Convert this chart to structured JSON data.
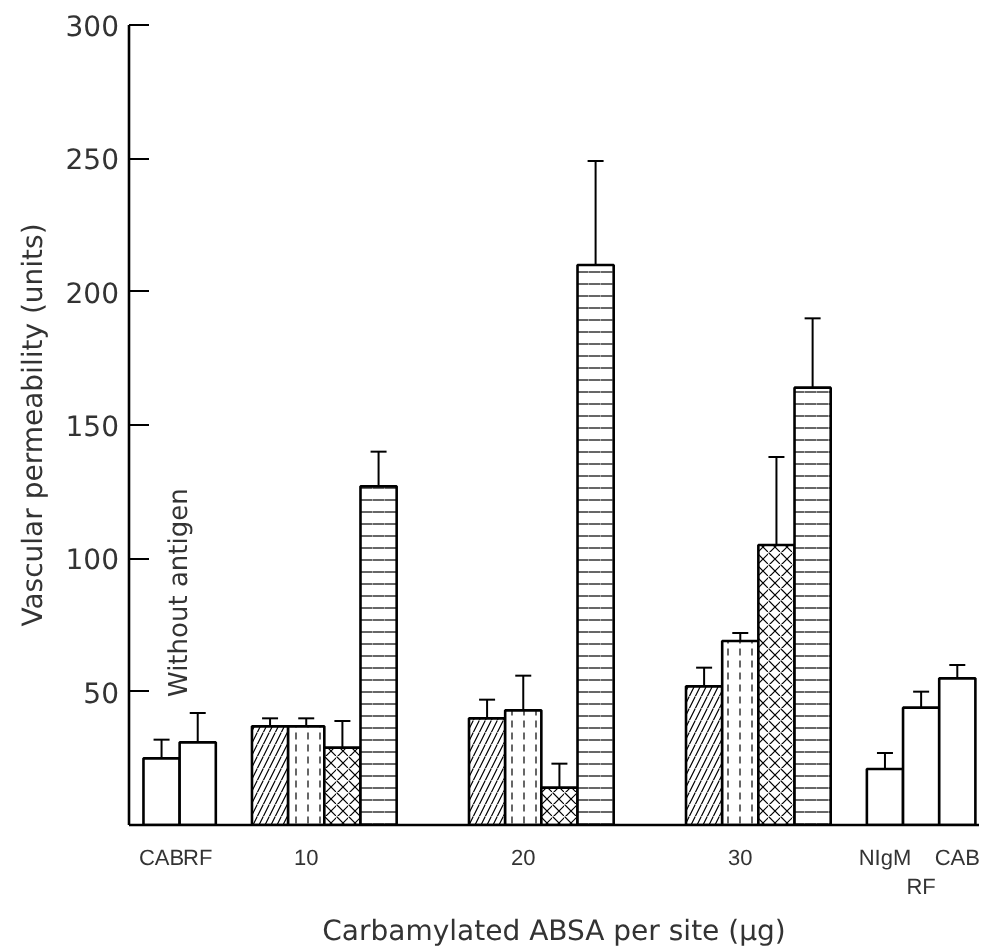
{
  "chart_data": {
    "type": "bar",
    "xlabel": "Carbamylated ABSA per site (μg)",
    "ylabel": "Vascular permeability (units)",
    "categories": [
      "CAB",
      "RF",
      null,
      null,
      "10",
      null,
      null,
      null,
      null,
      null,
      "20",
      null,
      null,
      null,
      null,
      null,
      "30",
      null,
      null,
      null,
      "NIgM",
      "RF",
      "CAB"
    ],
    "values": [
      25,
      31,
      null,
      37,
      37,
      29,
      127,
      null,
      null,
      40,
      43,
      14,
      210,
      null,
      null,
      52,
      69,
      105,
      164,
      null,
      21,
      44,
      55
    ],
    "errors": [
      7,
      11,
      null,
      3,
      3,
      10,
      13,
      null,
      null,
      7,
      13,
      9,
      39,
      null,
      null,
      7,
      3,
      33,
      26,
      null,
      6,
      6,
      5
    ],
    "color": "#000000",
    "annotations": [
      "Without antigen"
    ],
    "ylim": [
      0,
      300
    ],
    "yticks": [
      50,
      100,
      150,
      200,
      250,
      300
    ],
    "grid": false
  }
}
